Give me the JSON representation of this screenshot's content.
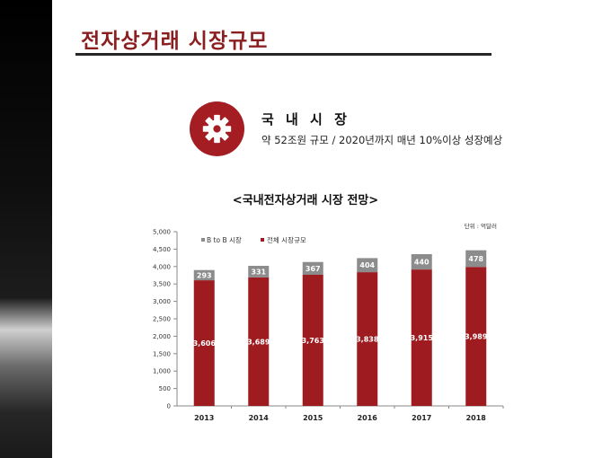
{
  "page": {
    "title": "전자상거래 시장규모",
    "info": {
      "icon": "gear-icon",
      "heading": "국 내 시 장",
      "description": "약 52조원 규모 / 2020년까지 매년 10%이상 성장예상"
    }
  },
  "colors": {
    "accent": "#a41d23",
    "series_total": "#9e1b1f",
    "series_b2b": "#8c8c8c",
    "title": "#8b1f1f"
  },
  "chart_data": {
    "type": "bar",
    "stacked": true,
    "title": "<국내전자상거래 시장 전망>",
    "unit_label": "단위 : 억달러",
    "categories": [
      "2013",
      "2014",
      "2015",
      "2016",
      "2017",
      "2018"
    ],
    "series": [
      {
        "name": "전체 시장규모",
        "values": [
          3606,
          3689,
          3763,
          3838,
          3915,
          3989
        ],
        "data_labels": [
          "3,606",
          "3,689",
          "3,763",
          "3,838",
          "3,915",
          "3,989"
        ]
      },
      {
        "name": "B to B 시장",
        "values": [
          293,
          331,
          367,
          404,
          440,
          478
        ],
        "data_labels": [
          "293",
          "331",
          "367",
          "404",
          "440",
          "478"
        ]
      }
    ],
    "ylim": [
      0,
      5000
    ],
    "yticks": [
      0,
      500,
      1000,
      1500,
      2000,
      2500,
      3000,
      3500,
      4000,
      4500,
      5000
    ],
    "ytick_labels": [
      "0",
      "500",
      "1,000",
      "1,500",
      "2,000",
      "2,500",
      "3,000",
      "3,500",
      "4,000",
      "4,500",
      "5,000"
    ],
    "legend_position": "top-left",
    "grid": false
  }
}
